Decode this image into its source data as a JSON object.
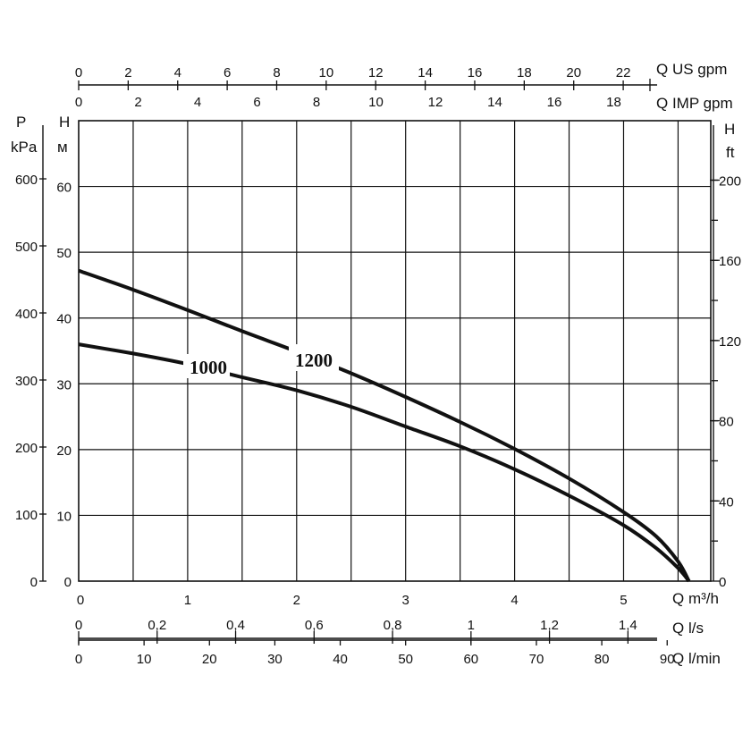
{
  "chart_data": {
    "type": "line",
    "series": [
      {
        "name": "1000",
        "x": [
          0,
          0.5,
          1.0,
          1.5,
          2.0,
          2.5,
          3.0,
          3.5,
          4.0,
          4.5,
          5.0,
          5.3,
          5.5,
          5.6
        ],
        "y": [
          36,
          34.6,
          33,
          31,
          29,
          26.5,
          23.5,
          20.5,
          17,
          13,
          8.5,
          5,
          2,
          0
        ]
      },
      {
        "name": "1200",
        "x": [
          0,
          0.5,
          1.0,
          1.5,
          2.0,
          2.5,
          3.0,
          3.5,
          4.0,
          4.5,
          5.0,
          5.3,
          5.5,
          5.6
        ],
        "y": [
          47.2,
          44.3,
          41.2,
          38,
          34.9,
          31.6,
          28,
          24.2,
          20.1,
          15.6,
          10.5,
          6.8,
          3,
          0
        ]
      }
    ],
    "axes": {
      "bottom_main": {
        "label": "Q m³/h",
        "range": [
          0,
          5.8
        ],
        "ticks": [
          "0",
          "1",
          "2",
          "3",
          "4",
          "5"
        ]
      },
      "bottom_ls": {
        "label": "Q l/s",
        "ticks": [
          "0",
          "0,2",
          "0,4",
          "0,6",
          "0,8",
          "1",
          "1,2",
          "1,4"
        ]
      },
      "bottom_lmin": {
        "label": "Q l/min",
        "ticks": [
          "0",
          "10",
          "20",
          "30",
          "40",
          "50",
          "60",
          "70",
          "80",
          "90"
        ]
      },
      "top_us": {
        "label": "Q US gpm",
        "ticks": [
          "0",
          "2",
          "4",
          "6",
          "8",
          "10",
          "12",
          "14",
          "16",
          "18",
          "20",
          "22"
        ]
      },
      "top_imp": {
        "label": "Q IMP gpm",
        "ticks": [
          "0",
          "2",
          "4",
          "6",
          "8",
          "10",
          "12",
          "14",
          "16",
          "18"
        ]
      },
      "left_m": {
        "label_top": "H",
        "label_unit": "м",
        "range": [
          0,
          70
        ],
        "ticks": [
          "0",
          "10",
          "20",
          "30",
          "40",
          "50",
          "60"
        ]
      },
      "left_kpa": {
        "label_top": "P",
        "label_unit": "kPa",
        "ticks": [
          "0",
          "100",
          "200",
          "300",
          "400",
          "500",
          "600"
        ]
      },
      "right_ft": {
        "label_top": "H",
        "label_unit": "ft",
        "ticks": [
          "0",
          "40",
          "80",
          "120",
          "160",
          "200"
        ]
      }
    },
    "grid": true
  }
}
